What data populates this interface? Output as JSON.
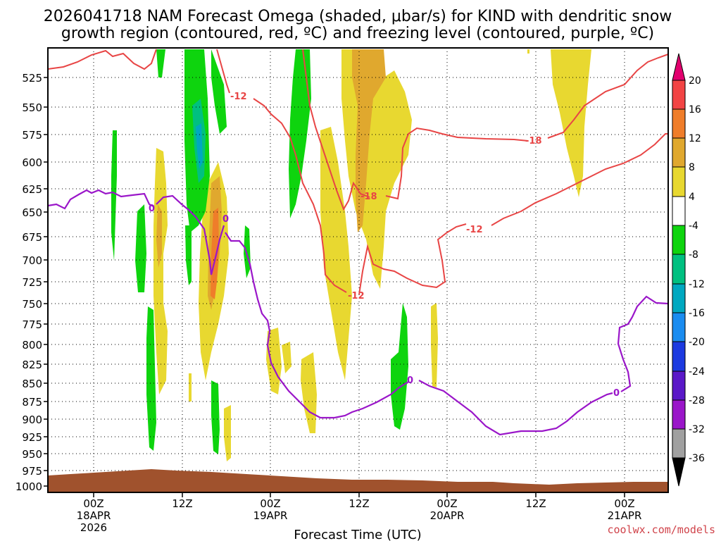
{
  "chart_data": {
    "type": "heatmap",
    "title_line1": "2026041718 NAM Forecast Omega (shaded, μbar/s) for KIND with dendritic snow",
    "title_line2": "growth region (contoured, red, ºC) and freezing level (contoured, purple, ºC)",
    "xlabel": "Forecast Time (UTC)",
    "credit": "coolwx.com/models",
    "y_ticks": [
      "525",
      "550",
      "575",
      "600",
      "625",
      "650",
      "675",
      "700",
      "725",
      "750",
      "775",
      "800",
      "825",
      "850",
      "875",
      "900",
      "925",
      "950",
      "975",
      "1000"
    ],
    "x_ticks": [
      {
        "l1": "00Z",
        "l2": "18APR",
        "l3": "2026"
      },
      {
        "l1": "12Z",
        "l2": "",
        "l3": ""
      },
      {
        "l1": "00Z",
        "l2": "19APR",
        "l3": ""
      },
      {
        "l1": "12Z",
        "l2": "",
        "l3": ""
      },
      {
        "l1": "00Z",
        "l2": "20APR",
        "l3": ""
      },
      {
        "l1": "12Z",
        "l2": "",
        "l3": ""
      },
      {
        "l1": "00Z",
        "l2": "21APR",
        "l3": ""
      }
    ],
    "colorbar_ticks": [
      "20",
      "16",
      "12",
      "8",
      "4",
      "-4",
      "-8",
      "-12",
      "-16",
      "-20",
      "-24",
      "-28",
      "-32",
      "-36"
    ],
    "colorbar_colors": [
      "#e2006e",
      "#f24444",
      "#ef7d2a",
      "#e0a82e",
      "#e8d830",
      "#ffffff",
      "#0ed40e",
      "#00c080",
      "#00a8c0",
      "#1a8cf0",
      "#1c3ae0",
      "#5a18c8",
      "#9a16c9",
      "#a0a0a0",
      "#000000"
    ],
    "contour_labels": {
      "red": [
        "-12",
        "-18",
        "-12",
        "-18",
        "-12"
      ],
      "purple": [
        "0",
        "0",
        "0",
        "0"
      ]
    },
    "colors": {
      "dendritic": "#e84545",
      "freezing": "#9a16c9",
      "terrain": "#a0522d"
    }
  }
}
